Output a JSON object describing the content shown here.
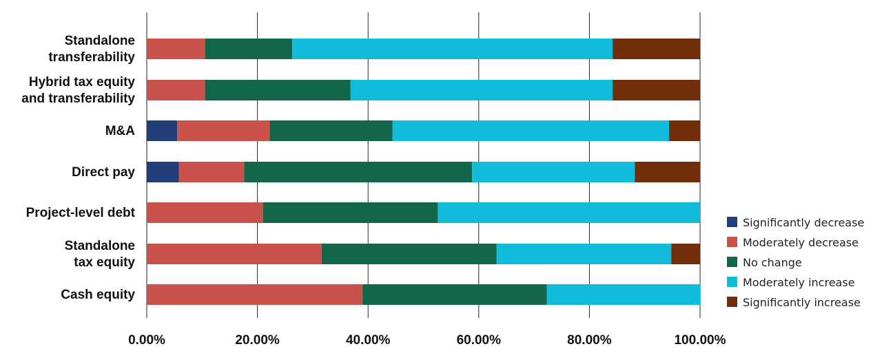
{
  "chart_data": {
    "type": "bar",
    "orientation": "horizontal",
    "stacked": true,
    "categories": [
      [
        "Standalone",
        "transferability"
      ],
      [
        "Hybrid tax equity",
        "and transferability"
      ],
      [
        "M&A"
      ],
      [
        "Direct pay"
      ],
      [
        "Project-level debt"
      ],
      [
        "Standalone",
        "tax equity"
      ],
      [
        "Cash equity"
      ]
    ],
    "series": [
      {
        "name": "Significantly decrease",
        "color": "#213d7a",
        "values": [
          0,
          0,
          5.5,
          5.8,
          0,
          0,
          0
        ]
      },
      {
        "name": "Moderately decrease",
        "color": "#c9534a",
        "values": [
          10.5,
          10.5,
          16.7,
          11.8,
          21.0,
          31.6,
          39.0
        ]
      },
      {
        "name": "No change",
        "color": "#12664a",
        "values": [
          15.8,
          26.3,
          22.2,
          41.2,
          31.6,
          31.6,
          33.3
        ]
      },
      {
        "name": "Moderately increase",
        "color": "#11bbdb",
        "values": [
          57.9,
          47.4,
          50.0,
          29.4,
          47.4,
          31.6,
          27.8
        ]
      },
      {
        "name": "Significantly increase",
        "color": "#722e0b",
        "values": [
          15.8,
          15.8,
          5.6,
          11.8,
          0,
          5.2,
          0
        ]
      }
    ],
    "xticks": [
      "0.00%",
      "20.00%",
      "40.00%",
      "60.00%",
      "80.00%",
      "100.00%"
    ],
    "xlim": [
      0,
      100
    ],
    "grid": true,
    "legend_position": "right"
  }
}
